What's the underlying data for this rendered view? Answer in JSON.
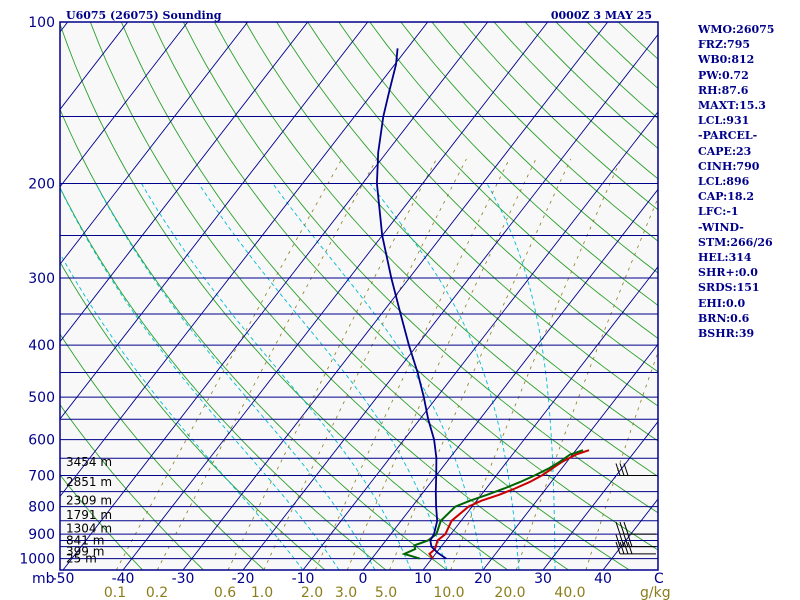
{
  "header": {
    "station": "U6075 (26075) Sounding",
    "time": "0000Z  3 MAY 25"
  },
  "stats": [
    "WMO:26075",
    "FRZ:795",
    "WB0:812",
    "PW:0.72",
    "RH:87.6",
    "MAXT:15.3",
    "LCL:931",
    "-PARCEL-",
    "CAPE:23",
    "CINH:790",
    "LCL:896",
    "CAP:18.2",
    "LFC:-1",
    "-WIND-",
    "STM:266/26",
    "HEL:314",
    "SHR+:0.0",
    "SRDS:151",
    "EHI:0.0",
    "BRN:0.6",
    "BSHR:39"
  ],
  "colors": {
    "frame": "#00008b",
    "isobar": "#00008b",
    "isotherm": "#00008b",
    "dry_adiabat": "#2ca02c",
    "moist_adiabat": "#00bcd4",
    "mixing_ratio": "#8b7d1a",
    "temperature": "#cc0000",
    "dewpoint": "#006400",
    "parcel": "#00008b",
    "wind": "#000000"
  },
  "chart_data": {
    "type": "skew-t",
    "pressure_unit": "mb",
    "temperature_unit": "C",
    "mixing_ratio_unit": "g/kg",
    "pressure_ticks": [
      100,
      200,
      300,
      400,
      500,
      600,
      700,
      800,
      900,
      1000
    ],
    "isobars": [
      100,
      150,
      200,
      250,
      300,
      350,
      400,
      450,
      500,
      550,
      600,
      650,
      700,
      750,
      800,
      850,
      900,
      925,
      950,
      1000
    ],
    "temperature_ticks": [
      -50,
      -40,
      -30,
      -20,
      -10,
      0,
      10,
      20,
      30,
      40
    ],
    "mixing_ratio_ticks": [
      "0.1",
      "0.2",
      "0.6",
      "1.0",
      "2.0",
      "3.0",
      "5.0",
      "10.0",
      "20.0",
      "40.0"
    ],
    "height_labels": [
      {
        "text": "3454 m",
        "p": 660
      },
      {
        "text": "2851 m",
        "p": 720
      },
      {
        "text": "2309 m",
        "p": 780
      },
      {
        "text": "1791 m",
        "p": 830
      },
      {
        "text": "1304 m",
        "p": 878
      },
      {
        "text": "841 m",
        "p": 925
      },
      {
        "text": "399 m",
        "p": 970
      },
      {
        "text": "25 m",
        "p": 1000
      }
    ],
    "series": [
      {
        "key": "temperature",
        "points": [
          [
            1000,
            10.2
          ],
          [
            980,
            9.0
          ],
          [
            960,
            9.3
          ],
          [
            925,
            8.6
          ],
          [
            900,
            9.1
          ],
          [
            850,
            8.4
          ],
          [
            800,
            9.4
          ],
          [
            780,
            10.8
          ],
          [
            760,
            13.0
          ],
          [
            740,
            14.8
          ],
          [
            720,
            16.4
          ],
          [
            700,
            17.6
          ],
          [
            680,
            18.4
          ],
          [
            660,
            19.2
          ],
          [
            640,
            20.6
          ],
          [
            628,
            22.2
          ]
        ]
      },
      {
        "key": "dewpoint",
        "points": [
          [
            1000,
            8.0
          ],
          [
            980,
            4.8
          ],
          [
            960,
            6.0
          ],
          [
            945,
            5.4
          ],
          [
            925,
            7.0
          ],
          [
            900,
            7.6
          ],
          [
            850,
            6.6
          ],
          [
            800,
            7.2
          ],
          [
            780,
            8.9
          ],
          [
            760,
            11.0
          ],
          [
            740,
            13.0
          ],
          [
            720,
            14.8
          ],
          [
            700,
            16.4
          ],
          [
            680,
            17.8
          ],
          [
            660,
            18.8
          ],
          [
            640,
            19.6
          ],
          [
            628,
            21.2
          ]
        ]
      },
      {
        "key": "parcel",
        "points": [
          [
            1000,
            12.4
          ],
          [
            975,
            10.2
          ],
          [
            950,
            8.4
          ],
          [
            925,
            7.4
          ],
          [
            900,
            7.2
          ],
          [
            850,
            6.0
          ],
          [
            800,
            4.0
          ],
          [
            750,
            2.0
          ],
          [
            700,
            0.0
          ],
          [
            650,
            -2.2
          ],
          [
            600,
            -5.0
          ],
          [
            550,
            -8.6
          ],
          [
            500,
            -12.2
          ],
          [
            450,
            -16.4
          ],
          [
            400,
            -21.4
          ],
          [
            350,
            -26.8
          ],
          [
            300,
            -33.0
          ],
          [
            250,
            -40.0
          ],
          [
            200,
            -47.6
          ],
          [
            175,
            -51.4
          ],
          [
            150,
            -55.2
          ],
          [
            135,
            -57.4
          ],
          [
            120,
            -59.8
          ],
          [
            112,
            -61.6
          ]
        ]
      }
    ],
    "wind_barbs": [
      {
        "p": 700,
        "dir": 260,
        "speed": 30
      },
      {
        "p": 900,
        "dir": 255,
        "speed": 30
      },
      {
        "p": 950,
        "dir": 250,
        "speed": 35
      },
      {
        "p": 980,
        "dir": 250,
        "speed": 35
      }
    ]
  }
}
